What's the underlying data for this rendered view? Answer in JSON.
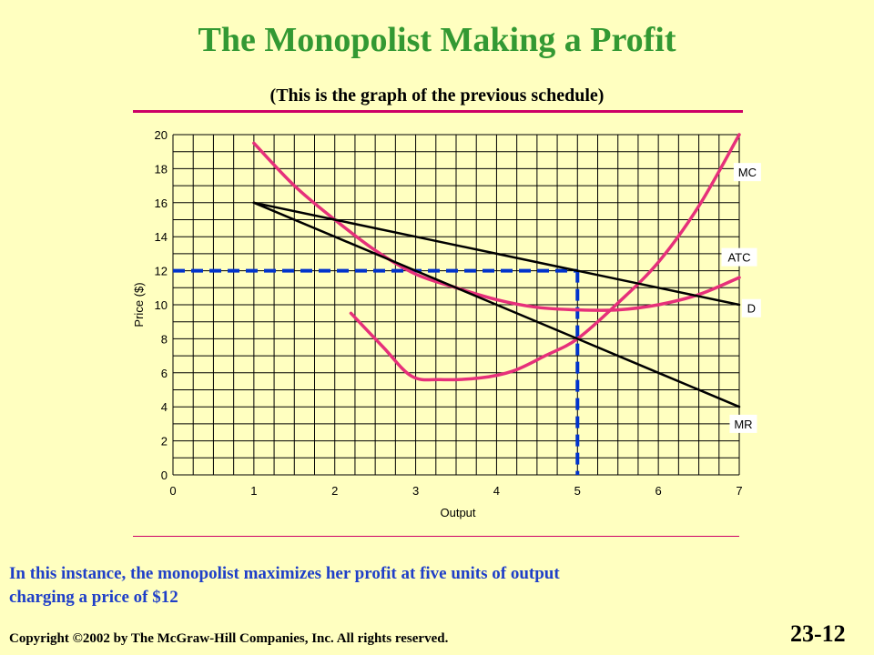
{
  "slide": {
    "title": "The Monopolist Making a Profit",
    "subtitle": "(This is the graph of the previous schedule)",
    "caption_line1": "In this instance, the monopolist maximizes her profit at five units of output",
    "caption_line2": "charging a price of $12",
    "copyright_prefix": "Copyright ",
    "copyright_symbol": "©",
    "copyright_rest": "2002 by The McGraw-Hill Companies, Inc.  All rights reserved.",
    "slide_number": "23-12"
  },
  "colors": {
    "background": "#ffffc0",
    "title": "#339933",
    "caption": "#1f3fc8",
    "rule": "#cc0066",
    "cost_curves": "#e6307a",
    "demand_lines": "#000000",
    "dashed": "#0033cc",
    "grid": "#000000"
  },
  "chart_data": {
    "type": "line",
    "title": "",
    "xlabel": "Output",
    "ylabel": "Price ($)",
    "xlim": [
      0,
      7
    ],
    "ylim": [
      0,
      20
    ],
    "x_ticks": [
      0,
      1,
      2,
      3,
      4,
      5,
      6,
      7
    ],
    "y_ticks": [
      0,
      2,
      4,
      6,
      8,
      10,
      12,
      14,
      16,
      18,
      20
    ],
    "grid": true,
    "grid_x_step": 0.25,
    "grid_y_step": 1,
    "series": [
      {
        "name": "MC",
        "kind": "cost",
        "points": [
          [
            2.2,
            9.5
          ],
          [
            2.6,
            7.5
          ],
          [
            2.95,
            5.8
          ],
          [
            3.3,
            5.6
          ],
          [
            3.8,
            5.7
          ],
          [
            4.2,
            6.1
          ],
          [
            4.6,
            7.0
          ],
          [
            5.0,
            8.0
          ],
          [
            5.5,
            10.1
          ],
          [
            6.0,
            12.5
          ],
          [
            6.5,
            15.8
          ],
          [
            7.0,
            20.0
          ]
        ]
      },
      {
        "name": "ATC",
        "kind": "cost",
        "points": [
          [
            1.0,
            19.5
          ],
          [
            1.5,
            17.0
          ],
          [
            2.0,
            15.0
          ],
          [
            2.5,
            13.2
          ],
          [
            3.0,
            11.8
          ],
          [
            3.5,
            11.0
          ],
          [
            4.0,
            10.3
          ],
          [
            4.5,
            9.85
          ],
          [
            5.0,
            9.7
          ],
          [
            5.5,
            9.7
          ],
          [
            6.0,
            10.0
          ],
          [
            6.5,
            10.6
          ],
          [
            7.0,
            11.6
          ]
        ]
      },
      {
        "name": "D",
        "kind": "demand",
        "points": [
          [
            1,
            16
          ],
          [
            2,
            15
          ],
          [
            3,
            14
          ],
          [
            4,
            13
          ],
          [
            5,
            12
          ],
          [
            6,
            11
          ],
          [
            7,
            10
          ]
        ]
      },
      {
        "name": "MR",
        "kind": "demand",
        "points": [
          [
            1,
            16
          ],
          [
            2,
            14
          ],
          [
            3,
            12
          ],
          [
            4,
            10
          ],
          [
            5,
            8
          ],
          [
            6,
            6
          ],
          [
            7,
            4
          ]
        ]
      }
    ],
    "guides": [
      {
        "name": "price-12",
        "from": [
          0,
          12
        ],
        "to": [
          5,
          12
        ]
      },
      {
        "name": "quantity-5",
        "from": [
          5,
          12
        ],
        "to": [
          5,
          0
        ]
      }
    ],
    "labels": [
      {
        "text": "MC",
        "x": 7.1,
        "y": 17.8
      },
      {
        "text": "ATC",
        "x": 7.0,
        "y": 12.8
      },
      {
        "text": "D",
        "x": 7.15,
        "y": 9.8
      },
      {
        "text": "MR",
        "x": 7.05,
        "y": 3.0
      }
    ]
  }
}
